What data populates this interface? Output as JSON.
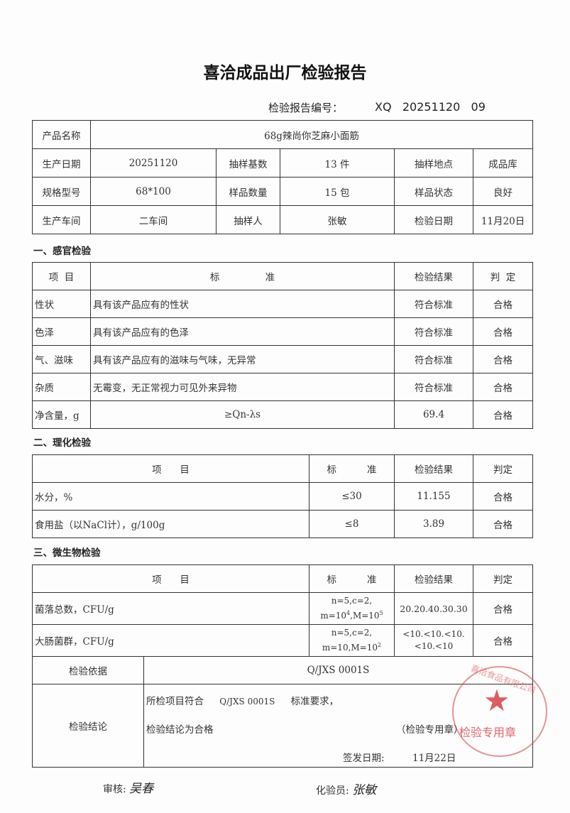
{
  "title": "喜洽成品出厂检验报告",
  "report_no": {
    "label": "检验报告编号：",
    "value": "XQ   20251120   09"
  },
  "info": {
    "product_name_label": "产品名称",
    "product_name": "68g辣尚你芝麻小面筋",
    "prod_date_label": "生产日期",
    "prod_date": "20251120",
    "sample_base_label": "抽样基数",
    "sample_base": "13 件",
    "sample_place_label": "抽样地点",
    "sample_place": "成品库",
    "spec_label": "规格型号",
    "spec": "68*100",
    "sample_qty_label": "样品数量",
    "sample_qty": "15 包",
    "sample_state_label": "样品状态",
    "sample_state": "良好",
    "workshop_label": "生产车间",
    "workshop": "二车间",
    "sampler_label": "抽样人",
    "sampler": "张敏",
    "inspect_date_label": "检验日期",
    "inspect_date": "11月20日"
  },
  "sensory": {
    "heading": "一、感官检验",
    "headers": [
      "项  目",
      "标               准",
      "检验结果",
      "判  定"
    ],
    "rows": [
      [
        "性状",
        "具有该产品应有的性状",
        "符合标准",
        "合格"
      ],
      [
        "色泽",
        "具有该产品应有的色泽",
        "符合标准",
        "合格"
      ],
      [
        "气、滋味",
        "具有该产品应有的滋味与气味，无异常",
        "符合标准",
        "合格"
      ],
      [
        "杂质",
        "无霉变，无正常视力可见外来异物",
        "符合标准",
        "合格"
      ],
      [
        "净含量，g",
        "≥Qn-λs",
        "69.4",
        "合格"
      ]
    ]
  },
  "physchem": {
    "heading": "二、理化检验",
    "headers": [
      "项      目",
      "标          准",
      "检验结果",
      "判定"
    ],
    "rows": [
      [
        "水分，%",
        "≤30",
        "11.155",
        "合格"
      ],
      [
        "食用盐（以NaCl计），g/100g",
        "≤8",
        "3.89",
        "合格"
      ]
    ]
  },
  "micro": {
    "heading": "三、微生物检验",
    "headers": [
      "项      目",
      "标          准",
      "检验结果",
      "判定"
    ],
    "rows": [
      {
        "item": "菌落总数，CFU/g",
        "std1": "n=5,c=2,",
        "std2_m": "m=10",
        "std2_mexp": "4",
        "std2_M": ",M=10",
        "std2_Mexp": "5",
        "result": "20.20.40.30.30",
        "judge": "合格"
      },
      {
        "item": "大肠菌群，CFU/g",
        "std1": "n=5,c=2,",
        "std2_m": "m=10",
        "std2_mexp": "",
        "std2_M": ",M=10",
        "std2_Mexp": "2",
        "result": "<10.<10.<10.<10.<10",
        "judge": "合格"
      }
    ]
  },
  "basis": {
    "label": "检验依据",
    "value": "Q/JXS 0001S"
  },
  "conclusion": {
    "label": "检验结论",
    "line1_a": "所检项目符合",
    "line1_b": "Q/JXS 0001S",
    "line1_c": "标准要求，",
    "line2": "检验结论为合格",
    "seal_note": "（检验专用章）",
    "issue_label": "签发日期:",
    "issue_date": "11月22日"
  },
  "stamp": {
    "text": "检验专用章",
    "ring": "喜洽食品有限公司",
    "color": "#d63c46"
  },
  "signatures": {
    "reviewer_label": "审核:",
    "reviewer": "吴春",
    "inspector_label": "化验员:",
    "inspector": "张敏"
  }
}
